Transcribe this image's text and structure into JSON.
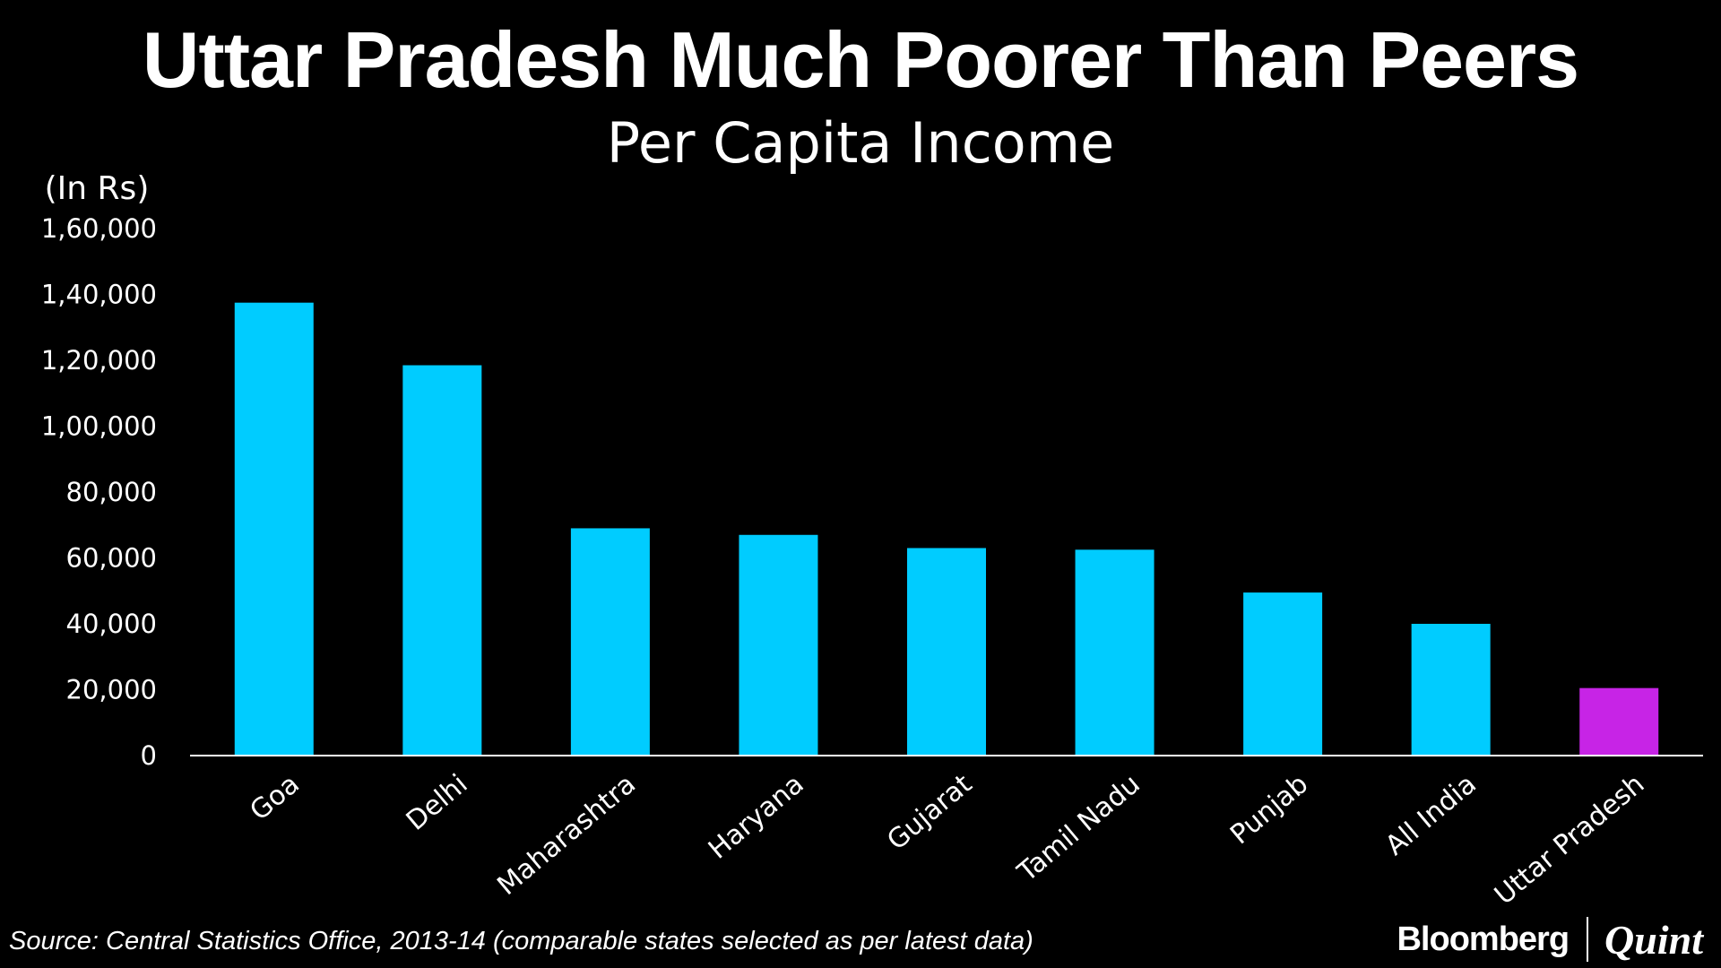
{
  "header": {
    "title": "Uttar Pradesh Much Poorer Than Peers",
    "subtitle": "Per Capita Income"
  },
  "footer": {
    "source": "Source: Central Statistics Office, 2013-14 (comparable states selected as per latest data)",
    "brand_primary": "Bloomberg",
    "brand_secondary": "Quint"
  },
  "colors": {
    "background": "#000000",
    "bar": "#00ccff",
    "highlight_bar": "#c724e6",
    "text": "#ffffff",
    "axis": "#ffffff"
  },
  "chart_data": {
    "type": "bar",
    "title": "Per Capita Income",
    "ylabel": "(In Rs)",
    "xlabel": "",
    "ylim": [
      0,
      160000
    ],
    "yticks": [
      0,
      20000,
      40000,
      60000,
      80000,
      100000,
      120000,
      140000,
      160000
    ],
    "ytick_labels": [
      "0",
      "20,000",
      "40,000",
      "60,000",
      "80,000",
      "1,00,000",
      "1,20,000",
      "1,40,000",
      "1,60,000"
    ],
    "grid": false,
    "legend": "none",
    "categories": [
      "Goa",
      "Delhi",
      "Maharashtra",
      "Haryana",
      "Gujarat",
      "Tamil Nadu",
      "Punjab",
      "All India",
      "Uttar Pradesh"
    ],
    "values": [
      137500,
      118500,
      69000,
      67000,
      63000,
      62500,
      49500,
      40000,
      20500
    ],
    "highlighted_category": "Uttar Pradesh"
  }
}
